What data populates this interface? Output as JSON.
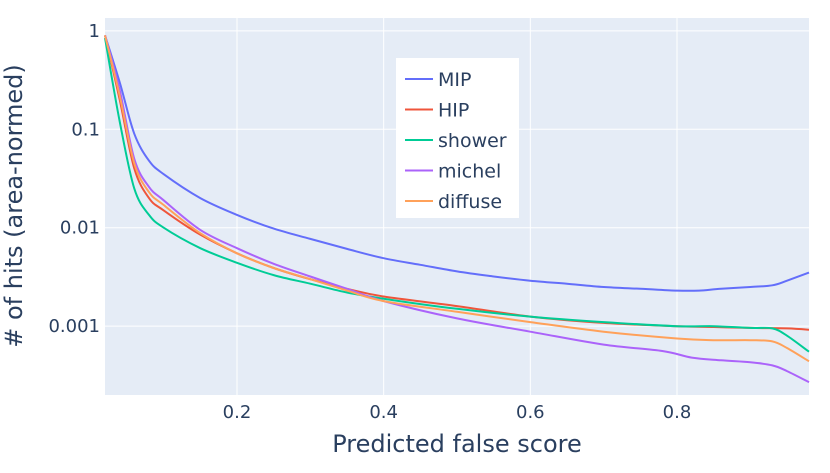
{
  "chart_data": {
    "type": "line",
    "xlabel": "Predicted false score",
    "ylabel": "# of hits (area-normed)",
    "y_scale": "log",
    "xlim": [
      0.02,
      0.98
    ],
    "ylim": [
      0.0002,
      1.35
    ],
    "x_ticks": [
      {
        "v": 0.2,
        "label": "0.2"
      },
      {
        "v": 0.4,
        "label": "0.4"
      },
      {
        "v": 0.6,
        "label": "0.6"
      },
      {
        "v": 0.8,
        "label": "0.8"
      }
    ],
    "y_ticks": [
      {
        "v": 1,
        "label": "1"
      },
      {
        "v": 0.1,
        "label": "0.1"
      },
      {
        "v": 0.01,
        "label": "0.01"
      },
      {
        "v": 0.001,
        "label": "0.001"
      }
    ],
    "grid": true,
    "legend_position": "top-center",
    "plot_bg": "#e5ecf6",
    "series": [
      {
        "name": "MIP",
        "color": "#636efa",
        "x": [
          0.02,
          0.04,
          0.06,
          0.08,
          0.1,
          0.15,
          0.2,
          0.25,
          0.3,
          0.35,
          0.4,
          0.45,
          0.5,
          0.55,
          0.6,
          0.65,
          0.7,
          0.75,
          0.8,
          0.83,
          0.86,
          0.9,
          0.93,
          0.95,
          0.98
        ],
        "y": [
          0.9,
          0.3,
          0.09,
          0.048,
          0.035,
          0.02,
          0.0135,
          0.0098,
          0.0077,
          0.0061,
          0.0049,
          0.0042,
          0.0036,
          0.0032,
          0.0029,
          0.0027,
          0.0025,
          0.0024,
          0.0023,
          0.0023,
          0.0024,
          0.0025,
          0.0026,
          0.0029,
          0.0035
        ]
      },
      {
        "name": "HIP",
        "color": "#ef553b",
        "x": [
          0.02,
          0.04,
          0.06,
          0.08,
          0.1,
          0.15,
          0.2,
          0.25,
          0.3,
          0.35,
          0.4,
          0.5,
          0.6,
          0.7,
          0.8,
          0.85,
          0.9,
          0.95,
          0.98
        ],
        "y": [
          0.9,
          0.2,
          0.04,
          0.02,
          0.015,
          0.0085,
          0.0055,
          0.0039,
          0.003,
          0.0024,
          0.002,
          0.0016,
          0.00125,
          0.00108,
          0.001,
          0.00098,
          0.00096,
          0.00095,
          0.00092
        ]
      },
      {
        "name": "shower",
        "color": "#00cc96",
        "x": [
          0.02,
          0.04,
          0.06,
          0.08,
          0.1,
          0.15,
          0.2,
          0.25,
          0.3,
          0.35,
          0.4,
          0.5,
          0.6,
          0.7,
          0.8,
          0.85,
          0.9,
          0.93,
          0.95,
          0.98
        ],
        "y": [
          0.85,
          0.12,
          0.025,
          0.0135,
          0.01,
          0.0062,
          0.0044,
          0.0033,
          0.0027,
          0.0022,
          0.0019,
          0.0015,
          0.00125,
          0.0011,
          0.001,
          0.001,
          0.00096,
          0.00095,
          0.0008,
          0.00055
        ]
      },
      {
        "name": "michel",
        "color": "#ab63fa",
        "x": [
          0.02,
          0.04,
          0.06,
          0.08,
          0.1,
          0.15,
          0.2,
          0.25,
          0.3,
          0.35,
          0.4,
          0.5,
          0.6,
          0.7,
          0.78,
          0.82,
          0.86,
          0.9,
          0.93,
          0.95,
          0.98
        ],
        "y": [
          0.9,
          0.25,
          0.05,
          0.026,
          0.019,
          0.0095,
          0.0062,
          0.0043,
          0.0032,
          0.0024,
          0.0018,
          0.0012,
          0.00088,
          0.00065,
          0.00056,
          0.00048,
          0.00045,
          0.00043,
          0.0004,
          0.00035,
          0.00027
        ]
      },
      {
        "name": "diffuse",
        "color": "#ffa15a",
        "x": [
          0.02,
          0.04,
          0.06,
          0.08,
          0.1,
          0.15,
          0.2,
          0.25,
          0.3,
          0.35,
          0.4,
          0.5,
          0.6,
          0.7,
          0.8,
          0.85,
          0.9,
          0.93,
          0.95,
          0.98
        ],
        "y": [
          0.9,
          0.22,
          0.045,
          0.023,
          0.017,
          0.0088,
          0.0055,
          0.0039,
          0.003,
          0.0023,
          0.0018,
          0.0014,
          0.0011,
          0.00088,
          0.00075,
          0.00072,
          0.00072,
          0.0007,
          0.0006,
          0.00044
        ]
      }
    ]
  }
}
